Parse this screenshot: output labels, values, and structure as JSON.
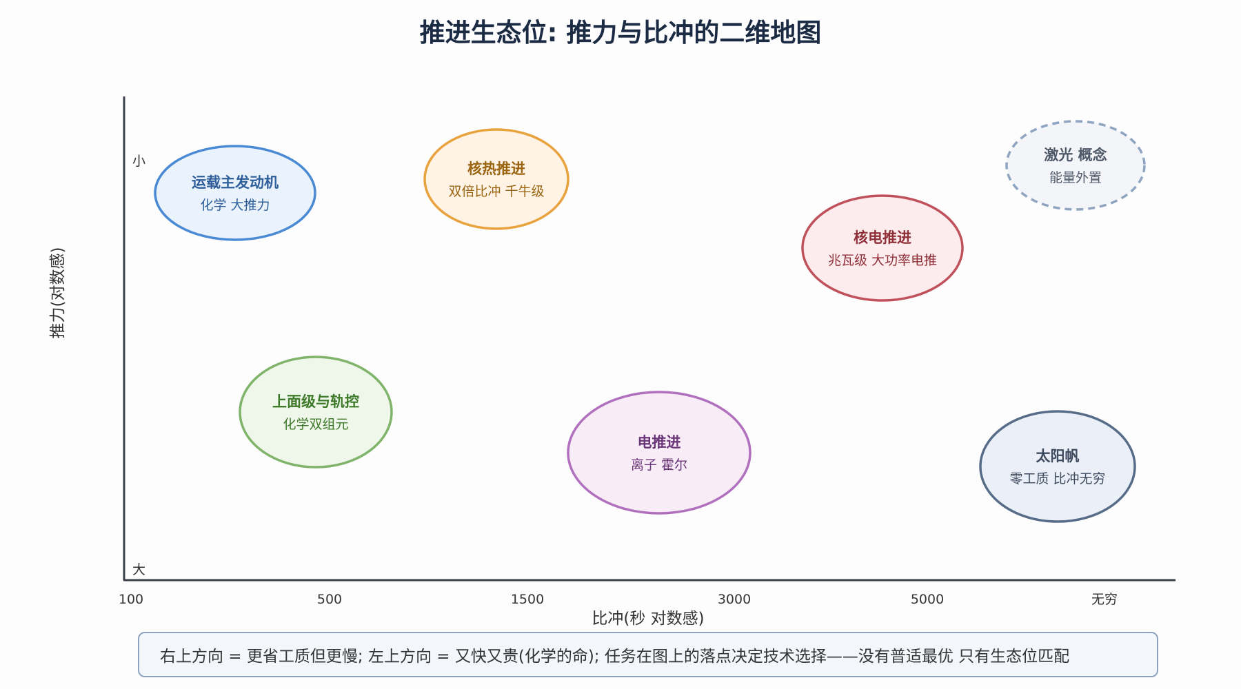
{
  "title": "推进生态位: 推力与比冲的二维地图",
  "axes": {
    "x_label": "比冲(秒 对数感)",
    "y_label": "推力(对数感)",
    "x_ticks": [
      "100",
      "500",
      "1500",
      "3000",
      "5000",
      "无穷"
    ],
    "y_top": "小",
    "y_bottom": "大"
  },
  "regions": [
    {
      "id": "launch",
      "title": "运载主发动机",
      "subtitle": "化学 大推力",
      "stroke": "#4a8ad4",
      "fill": "#eaf2fc",
      "text_color": "#2e5f9a",
      "dashed": false
    },
    {
      "id": "nuclear-thermal",
      "title": "核热推进",
      "subtitle": "双倍比冲 千牛级",
      "stroke": "#e8a23e",
      "fill": "#fef3e4",
      "text_color": "#9a6410",
      "dashed": false
    },
    {
      "id": "laser",
      "title": "激光 概念",
      "subtitle": "能量外置",
      "stroke": "#8ea4c0",
      "fill": "#f3f5f9",
      "text_color": "#4f5868",
      "dashed": true
    },
    {
      "id": "nuclear-electric",
      "title": "核电推进",
      "subtitle": "兆瓦级 大功率电推",
      "stroke": "#c0505a",
      "fill": "#fcecee",
      "text_color": "#8f3038",
      "dashed": false
    },
    {
      "id": "upper-stage",
      "title": "上面级与轨控",
      "subtitle": "化学双组元",
      "stroke": "#80b46a",
      "fill": "#eef7ea",
      "text_color": "#3e7a2a",
      "dashed": false
    },
    {
      "id": "electric",
      "title": "电推进",
      "subtitle": "离子 霍尔",
      "stroke": "#b070be",
      "fill": "#f8ecf6",
      "text_color": "#6a3478",
      "dashed": false
    },
    {
      "id": "solar-sail",
      "title": "太阳帆",
      "subtitle": "零工质 比冲无穷",
      "stroke": "#566c88",
      "fill": "#ebf0f8",
      "text_color": "#3e4a5e",
      "dashed": false
    }
  ],
  "note": "右上方向 = 更省工质但更慢; 左上方向 = 又快又贵(化学的命); 任务在图上的落点决定技术选择——没有普适最优 只有生态位匹配"
}
